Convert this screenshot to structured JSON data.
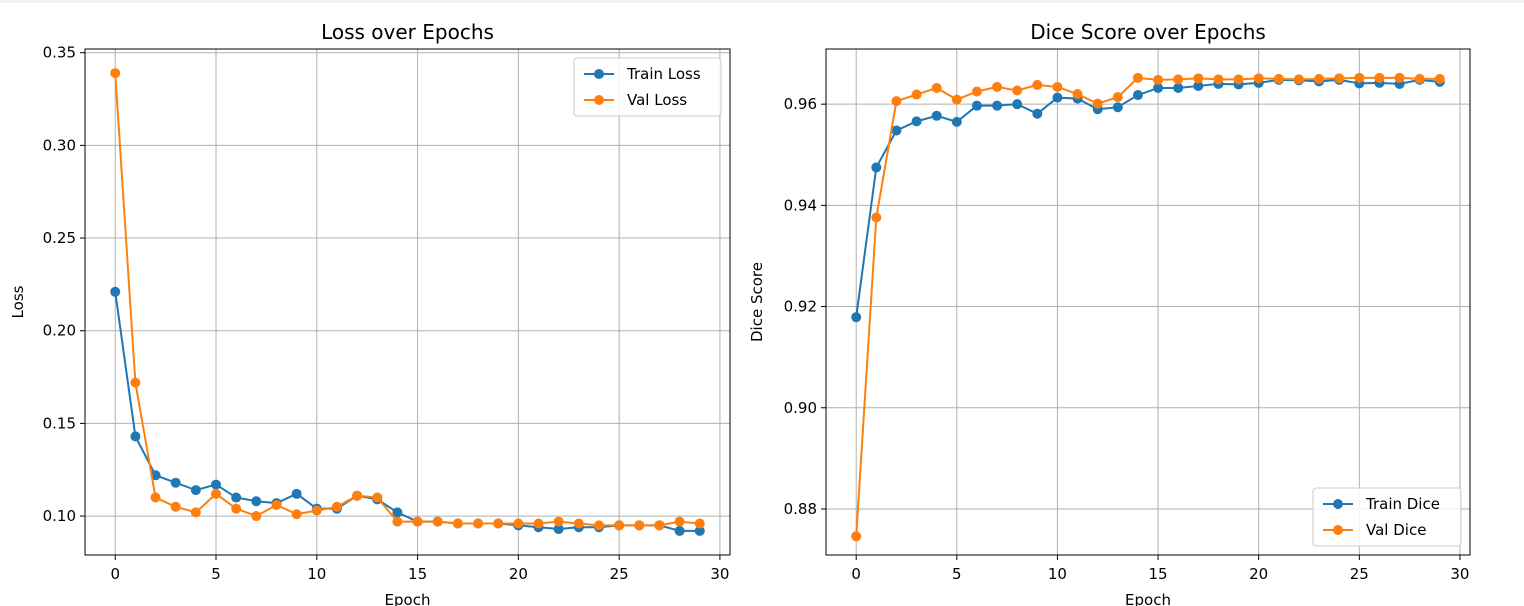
{
  "colors": {
    "train": "#1f77b4",
    "val": "#ff7f0e",
    "grid": "#b0b0b0",
    "axes": "#000000",
    "legend_border": "#cccccc"
  },
  "chart_data": [
    {
      "type": "line",
      "title": "Loss over Epochs",
      "xlabel": "Epoch",
      "ylabel": "Loss",
      "xlim": [
        -1.5,
        30.5
      ],
      "ylim": [
        0.079,
        0.352
      ],
      "xticks": [
        0,
        5,
        10,
        15,
        20,
        25,
        30
      ],
      "yticks": [
        0.1,
        0.15,
        0.2,
        0.25,
        0.3,
        0.35
      ],
      "ytick_labels": [
        "0.10",
        "0.15",
        "0.20",
        "0.25",
        "0.30",
        "0.35"
      ],
      "grid": true,
      "legend_position": "top-right",
      "marker": "circle",
      "x": [
        0,
        1,
        2,
        3,
        4,
        5,
        6,
        7,
        8,
        9,
        10,
        11,
        12,
        13,
        14,
        15,
        16,
        17,
        18,
        19,
        20,
        21,
        22,
        23,
        24,
        25,
        26,
        27,
        28,
        29
      ],
      "series": [
        {
          "name": "Train Loss",
          "color": "#1f77b4",
          "values": [
            0.221,
            0.143,
            0.122,
            0.118,
            0.114,
            0.117,
            0.11,
            0.108,
            0.107,
            0.112,
            0.104,
            0.104,
            0.111,
            0.109,
            0.102,
            0.097,
            0.097,
            0.096,
            0.096,
            0.096,
            0.095,
            0.094,
            0.093,
            0.094,
            0.094,
            0.095,
            0.095,
            0.095,
            0.092,
            0.092
          ]
        },
        {
          "name": "Val Loss",
          "color": "#ff7f0e",
          "values": [
            0.339,
            0.172,
            0.11,
            0.105,
            0.102,
            0.112,
            0.104,
            0.1,
            0.106,
            0.101,
            0.103,
            0.105,
            0.111,
            0.11,
            0.097,
            0.097,
            0.097,
            0.096,
            0.096,
            0.096,
            0.096,
            0.096,
            0.097,
            0.096,
            0.095,
            0.095,
            0.095,
            0.095,
            0.097,
            0.096
          ]
        }
      ]
    },
    {
      "type": "line",
      "title": "Dice Score over Epochs",
      "xlabel": "Epoch",
      "ylabel": "Dice Score",
      "xlim": [
        -1.5,
        30.5
      ],
      "ylim": [
        0.8709,
        0.9709
      ],
      "xticks": [
        0,
        5,
        10,
        15,
        20,
        25,
        30
      ],
      "yticks": [
        0.88,
        0.9,
        0.92,
        0.94,
        0.96
      ],
      "ytick_labels": [
        "0.88",
        "0.90",
        "0.92",
        "0.94",
        "0.96"
      ],
      "grid": true,
      "legend_position": "bottom-right",
      "marker": "circle",
      "x": [
        0,
        1,
        2,
        3,
        4,
        5,
        6,
        7,
        8,
        9,
        10,
        11,
        12,
        13,
        14,
        15,
        16,
        17,
        18,
        19,
        20,
        21,
        22,
        23,
        24,
        25,
        26,
        27,
        28,
        29
      ],
      "series": [
        {
          "name": "Train Dice",
          "color": "#1f77b4",
          "values": [
            0.9179,
            0.9475,
            0.9548,
            0.9566,
            0.9577,
            0.9565,
            0.9597,
            0.9597,
            0.96,
            0.9581,
            0.9613,
            0.9611,
            0.959,
            0.9594,
            0.9618,
            0.9632,
            0.9632,
            0.9636,
            0.964,
            0.9639,
            0.9642,
            0.9648,
            0.9647,
            0.9645,
            0.9648,
            0.9641,
            0.9642,
            0.964,
            0.9648,
            0.9644
          ]
        },
        {
          "name": "Val Dice",
          "color": "#ff7f0e",
          "values": [
            0.8746,
            0.9376,
            0.9606,
            0.9619,
            0.9632,
            0.9609,
            0.9625,
            0.9634,
            0.9627,
            0.9638,
            0.9634,
            0.962,
            0.9601,
            0.9614,
            0.9652,
            0.9648,
            0.9649,
            0.9651,
            0.9649,
            0.9649,
            0.9651,
            0.965,
            0.9649,
            0.965,
            0.9651,
            0.9652,
            0.9652,
            0.9652,
            0.965,
            0.965
          ]
        }
      ]
    }
  ]
}
